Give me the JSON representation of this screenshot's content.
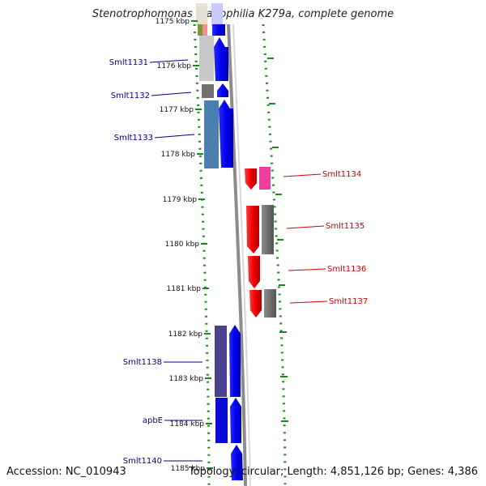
{
  "title": "Stenotrophomonas maltophilia K279a, complete genome",
  "footer": {
    "accession": "Accession: NC_010943",
    "stats": "Topology: circular; Length: 4,851,126 bp; Genes: 4,386"
  },
  "colors": {
    "forward_label": "#00008b",
    "reverse_label": "#cc0000",
    "gc_dots": "#1a8a1a",
    "backbone": "#8c8c8c"
  },
  "ticks": [
    "1175 kbp",
    "1176 kbp",
    "1177 kbp",
    "1178 kbp",
    "1179 kbp",
    "1180 kbp",
    "1181 kbp",
    "1182 kbp",
    "1183 kbp",
    "1184 kbp",
    "1185 kbp"
  ],
  "forward_labels": [
    {
      "text": "Smlt1131"
    },
    {
      "text": "Smlt1132"
    },
    {
      "text": "Smlt1133"
    },
    {
      "text": "Smlt1138"
    },
    {
      "text": "apbE"
    },
    {
      "text": "Smlt1140"
    }
  ],
  "reverse_labels": [
    {
      "text": "Smlt1134"
    },
    {
      "text": "Smlt1135"
    },
    {
      "text": "Smlt1136"
    },
    {
      "text": "Smlt1137"
    }
  ]
}
